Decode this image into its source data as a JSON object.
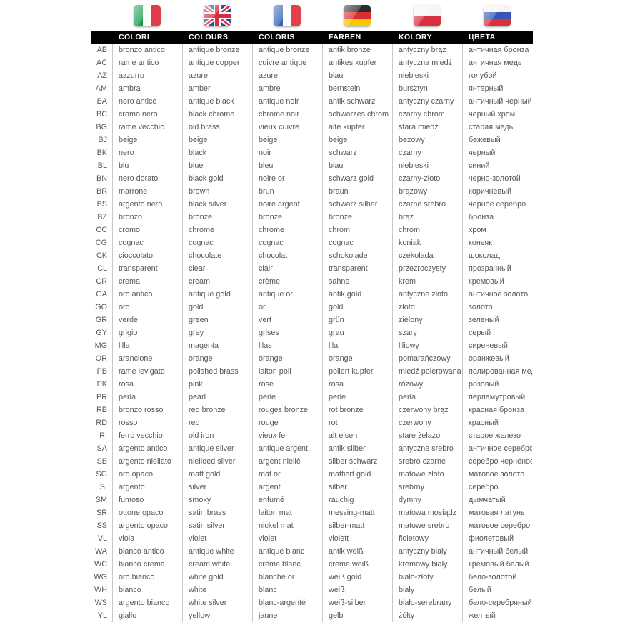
{
  "header": {
    "columns": [
      {
        "key": "it",
        "label": "COLORI",
        "flag": "italy"
      },
      {
        "key": "en",
        "label": "COLOURS",
        "flag": "uk"
      },
      {
        "key": "fr",
        "label": "COLORIS",
        "flag": "france"
      },
      {
        "key": "de",
        "label": "FARBEN",
        "flag": "germany"
      },
      {
        "key": "pl",
        "label": "KOLORY",
        "flag": "poland"
      },
      {
        "key": "ru",
        "label": "ЦВЕТА",
        "flag": "russia"
      }
    ]
  },
  "flags": {
    "italy": {
      "type": "vertical",
      "colors": [
        "#179e4c",
        "#ffffff",
        "#e03c4b"
      ]
    },
    "uk": {
      "type": "uk",
      "colors": [
        "#2b4d9b",
        "#ffffff",
        "#d62e3f"
      ]
    },
    "france": {
      "type": "vertical",
      "colors": [
        "#2f63b4",
        "#ffffff",
        "#e2404d"
      ]
    },
    "germany": {
      "type": "horizontal",
      "colors": [
        "#2b2b2b",
        "#d82e2e",
        "#f7ca00"
      ]
    },
    "poland": {
      "type": "horizontal",
      "colors": [
        "#f5f5f5",
        "#d9303e"
      ]
    },
    "russia": {
      "type": "horizontal",
      "colors": [
        "#f5f5f5",
        "#3855b3",
        "#d9303e"
      ]
    }
  },
  "colors": {
    "header_bg": "#000000",
    "header_text": "#ffffff",
    "row_text": "#58585a",
    "divider": "#c9c9c9"
  },
  "table": {
    "rows": [
      {
        "code": "AB",
        "it": "bronzo antico",
        "en": "antique bronze",
        "fr": "antique bronze",
        "de": "antik bronze",
        "pl": "antyczny brąz",
        "ru": "античная бронза"
      },
      {
        "code": "AC",
        "it": "rame antico",
        "en": "antique copper",
        "fr": "cuivre antique",
        "de": "antikes kupfer",
        "pl": "antyczna miedź",
        "ru": "античная медь"
      },
      {
        "code": "AZ",
        "it": "azzurro",
        "en": "azure",
        "fr": "azure",
        "de": "blau",
        "pl": "niebieski",
        "ru": "голубой"
      },
      {
        "code": "AM",
        "it": "ambra",
        "en": "amber",
        "fr": "ambre",
        "de": "bernstein",
        "pl": "bursztyn",
        "ru": "янтарный"
      },
      {
        "code": "BA",
        "it": "nero antico",
        "en": "antique black",
        "fr": "antique noir",
        "de": "antik schwarz",
        "pl": "antyczny czarny",
        "ru": "античный черный"
      },
      {
        "code": "BC",
        "it": "cromo nero",
        "en": "black chrome",
        "fr": "chrome noir",
        "de": "schwarzes chrom",
        "pl": "czarny chrom",
        "ru": "черный хром"
      },
      {
        "code": "BG",
        "it": "rame vecchio",
        "en": "old brass",
        "fr": "vieux cuivre",
        "de": "alte kupfer",
        "pl": "stara miedź",
        "ru": "старая медь"
      },
      {
        "code": "BJ",
        "it": "beige",
        "en": "beige",
        "fr": "beige",
        "de": "beige",
        "pl": "beżowy",
        "ru": "бежевый"
      },
      {
        "code": "BK",
        "it": "nero",
        "en": "black",
        "fr": "noir",
        "de": "schwarz",
        "pl": "czarny",
        "ru": "черный"
      },
      {
        "code": "BL",
        "it": "blu",
        "en": "blue",
        "fr": "bleu",
        "de": "blau",
        "pl": "niebieski",
        "ru": "синий"
      },
      {
        "code": "BN",
        "it": "nero dorato",
        "en": "black gold",
        "fr": "noire or",
        "de": "schwarz gold",
        "pl": "czarny-złoto",
        "ru": "черно-золотой"
      },
      {
        "code": "BR",
        "it": "marrone",
        "en": "brown",
        "fr": "brun",
        "de": "braun",
        "pl": "brązowy",
        "ru": "коричневый"
      },
      {
        "code": "BS",
        "it": "argento nero",
        "en": "black silver",
        "fr": "noire argent",
        "de": "schwarz silber",
        "pl": "czarne srebro",
        "ru": "черное серебро"
      },
      {
        "code": "BZ",
        "it": "bronzo",
        "en": "bronze",
        "fr": "bronze",
        "de": "bronze",
        "pl": "brąz",
        "ru": "бронза"
      },
      {
        "code": "CC",
        "it": "cromo",
        "en": "chrome",
        "fr": "chrome",
        "de": "chrom",
        "pl": "chrom",
        "ru": "хром"
      },
      {
        "code": "CG",
        "it": "cognac",
        "en": "cognac",
        "fr": "cognac",
        "de": "cognac",
        "pl": "koniak",
        "ru": "коньяк"
      },
      {
        "code": "CK",
        "it": "cioccolato",
        "en": "chocolate",
        "fr": "chocolat",
        "de": "schokolade",
        "pl": "czekolada",
        "ru": "шоколад"
      },
      {
        "code": "CL",
        "it": "transparent",
        "en": "clear",
        "fr": "clair",
        "de": "transparent",
        "pl": "przezroczysty",
        "ru": "прозрачный"
      },
      {
        "code": "CR",
        "it": "crema",
        "en": "cream",
        "fr": "crème",
        "de": "sahne",
        "pl": "krem",
        "ru": "кремовый"
      },
      {
        "code": "GA",
        "it": "oro antico",
        "en": "antique gold",
        "fr": "antique or",
        "de": "antik gold",
        "pl": "antyczne złoto",
        "ru": "античное золото"
      },
      {
        "code": "GO",
        "it": "oro",
        "en": "gold",
        "fr": "or",
        "de": "gold",
        "pl": "złoto",
        "ru": "золото"
      },
      {
        "code": "GR",
        "it": "verde",
        "en": "green",
        "fr": "vert",
        "de": "grün",
        "pl": "zielony",
        "ru": "зеленый"
      },
      {
        "code": "GY",
        "it": "grigio",
        "en": "grey",
        "fr": "grises",
        "de": "grau",
        "pl": "szary",
        "ru": "серый"
      },
      {
        "code": "MG",
        "it": "lilla",
        "en": "magenta",
        "fr": "lilas",
        "de": "lila",
        "pl": "liliowy",
        "ru": "сиреневый"
      },
      {
        "code": "OR",
        "it": "arancione",
        "en": "orange",
        "fr": "orange",
        "de": "orange",
        "pl": "pomarańczowy",
        "ru": "оранжевый"
      },
      {
        "code": "PB",
        "it": "rame levigato",
        "en": "polished brass",
        "fr": "laiton poli",
        "de": "poliert kupfer",
        "pl": "miedź polerowana",
        "ru": "полированная медь"
      },
      {
        "code": "PK",
        "it": "rosa",
        "en": "pink",
        "fr": "rose",
        "de": "rosa",
        "pl": "różowy",
        "ru": "розовый"
      },
      {
        "code": "PR",
        "it": "perla",
        "en": "pearl",
        "fr": "perle",
        "de": "perle",
        "pl": "perła",
        "ru": "перламутровый"
      },
      {
        "code": "RB",
        "it": "bronzo rosso",
        "en": "red bronze",
        "fr": "rouges bronze",
        "de": "rot bronze",
        "pl": "czerwony brąz",
        "ru": "красная бронза"
      },
      {
        "code": "RD",
        "it": "rosso",
        "en": "red",
        "fr": "rouge",
        "de": "rot",
        "pl": "czerwony",
        "ru": "красный"
      },
      {
        "code": "RI",
        "it": "ferro vecchio",
        "en": "old iron",
        "fr": "vieux fer",
        "de": "alt eisen",
        "pl": "stare żelazo",
        "ru": "старое железо"
      },
      {
        "code": "SA",
        "it": "argento antico",
        "en": "antique silver",
        "fr": "antique argent",
        "de": "antik silber",
        "pl": "antyczne srebro",
        "ru": "античное серебро"
      },
      {
        "code": "SB",
        "it": "argento niellato",
        "en": "nielloed silver",
        "fr": "argent niellè",
        "de": "silber schwarz",
        "pl": "srebro czarne",
        "ru": "серебро чернёное"
      },
      {
        "code": "SG",
        "it": "oro opaco",
        "en": "matt gold",
        "fr": "mat or",
        "de": "mattiert gold",
        "pl": "matowe złoto",
        "ru": "матовое золото"
      },
      {
        "code": "SI",
        "it": "argento",
        "en": "silver",
        "fr": "argent",
        "de": "silber",
        "pl": "srebrny",
        "ru": "серебро"
      },
      {
        "code": "SM",
        "it": "fumoso",
        "en": "smoky",
        "fr": "enfumé",
        "de": "rauchig",
        "pl": "dymny",
        "ru": "дымчатый"
      },
      {
        "code": "SR",
        "it": "ottone opaco",
        "en": "satin brass",
        "fr": "laiton mat",
        "de": "messing-matt",
        "pl": "matowa mosiądz",
        "ru": "матовая латунь"
      },
      {
        "code": "SS",
        "it": "argento opaco",
        "en": "satin silver",
        "fr": "nickel mat",
        "de": "silber-matt",
        "pl": "matowe srebro",
        "ru": "матовое серебро"
      },
      {
        "code": "VL",
        "it": "viola",
        "en": "violet",
        "fr": "violet",
        "de": "violett",
        "pl": "fioletowy",
        "ru": "фиолетовый"
      },
      {
        "code": "WA",
        "it": "bianco antico",
        "en": "antique white",
        "fr": "antique blanc",
        "de": "antik weiß",
        "pl": "antyczny biały",
        "ru": "античный белый"
      },
      {
        "code": "WC",
        "it": "bianco crema",
        "en": "cream white",
        "fr": "crème blanc",
        "de": "creme weiß",
        "pl": "kremowy biały",
        "ru": "кремовый белый"
      },
      {
        "code": "WG",
        "it": "oro bianco",
        "en": "white gold",
        "fr": "blanche or",
        "de": "weiß gold",
        "pl": "biało-złoty",
        "ru": "бело-золотой"
      },
      {
        "code": "WH",
        "it": "bianco",
        "en": "white",
        "fr": "blanc",
        "de": "weiß",
        "pl": "biały",
        "ru": "белый"
      },
      {
        "code": "WS",
        "it": "argento bianco",
        "en": "white silver",
        "fr": "blanc-argenté",
        "de": "weiß-silber",
        "pl": "biało-serebrany",
        "ru": "бело-серебряный"
      },
      {
        "code": "YL",
        "it": "giallo",
        "en": "yellow",
        "fr": "jaune",
        "de": "gelb",
        "pl": "żółty",
        "ru": "желтый"
      }
    ]
  }
}
